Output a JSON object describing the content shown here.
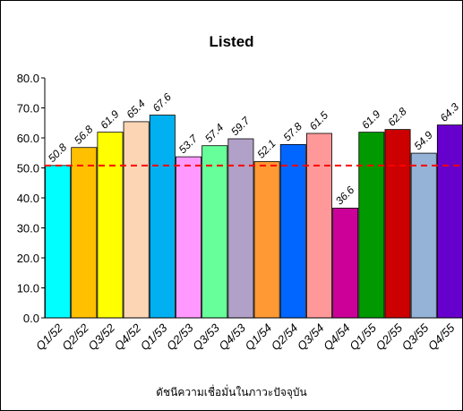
{
  "chart_data": {
    "type": "bar",
    "title": "Listed",
    "xlabel": "ดัชนีความเชื่อมั่นในภาวะปัจจุบัน",
    "ylabel": "",
    "ylim": [
      0,
      80
    ],
    "y_ticks": [
      "0.0",
      "10.0",
      "20.0",
      "30.0",
      "40.0",
      "50.0",
      "60.0",
      "70.0",
      "80.0"
    ],
    "grid": false,
    "legend": "none",
    "reference_line": {
      "value": 50.8,
      "style": "dashed",
      "color": "#ff0000"
    },
    "categories": [
      "Q1/52",
      "Q2/52",
      "Q3/52",
      "Q4/52",
      "Q1/53",
      "Q2/53",
      "Q3/53",
      "Q4/53",
      "Q1/54",
      "Q2/54",
      "Q3/54",
      "Q4/54",
      "Q1/55",
      "Q2/55",
      "Q3/55",
      "Q4/55"
    ],
    "values": [
      50.8,
      56.8,
      61.9,
      65.4,
      67.6,
      53.7,
      57.4,
      59.7,
      52.1,
      57.8,
      61.5,
      36.6,
      61.9,
      62.8,
      54.9,
      64.3
    ],
    "value_labels": [
      "50.8",
      "56.8",
      "61.9",
      "65.4",
      "67.6",
      "53.7",
      "57.4",
      "59.7",
      "52.1",
      "57.8",
      "61.5",
      "36.6",
      "61.9",
      "62.8",
      "54.9",
      "64.3"
    ],
    "colors": [
      "#00ffff",
      "#ffc000",
      "#ffff00",
      "#fcd5b4",
      "#00b0f0",
      "#ff99ff",
      "#66ff99",
      "#b1a0c7",
      "#ff9933",
      "#0066ff",
      "#ff9999",
      "#cc0099",
      "#009900",
      "#cc0000",
      "#95b3d7",
      "#6600cc"
    ]
  }
}
